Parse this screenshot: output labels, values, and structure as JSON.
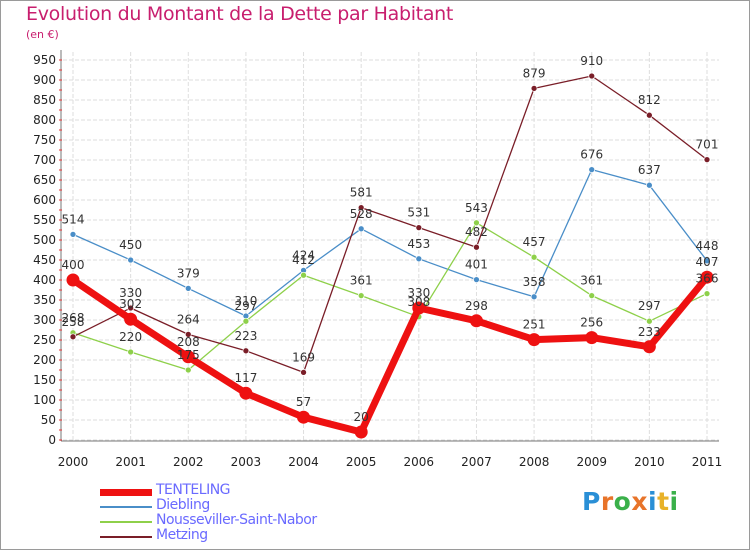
{
  "title": "Evolution du Montant de la Dette par Habitant",
  "subtitle": "(en €)",
  "logo": {
    "letters": [
      "P",
      "r",
      "o",
      "x",
      "i",
      "t",
      "i"
    ],
    "colors": [
      "#2a8fd6",
      "#e8742a",
      "#3ab04a",
      "#e8742a",
      "#2a8fd6",
      "#e8b22a",
      "#3ab04a"
    ]
  },
  "chart_data": {
    "type": "line",
    "x": [
      "2000",
      "2001",
      "2002",
      "2003",
      "2004",
      "2005",
      "2006",
      "2007",
      "2008",
      "2009",
      "2010",
      "2011"
    ],
    "ylim": [
      0,
      950
    ],
    "yticks": [
      0,
      50,
      100,
      150,
      200,
      250,
      300,
      350,
      400,
      450,
      500,
      550,
      600,
      650,
      700,
      750,
      800,
      850,
      900,
      950
    ],
    "grid": true,
    "legend_position": "bottom-left",
    "series": [
      {
        "name": "Diebling",
        "color": "#4a8ec8",
        "values": [
          514,
          450,
          379,
          310,
          424,
          528,
          453,
          401,
          358,
          676,
          637,
          448
        ]
      },
      {
        "name": "Nousseviller-Saint-Nabor",
        "color": "#8ed04a",
        "values": [
          268,
          220,
          175,
          297,
          412,
          361,
          308,
          543,
          457,
          361,
          297,
          366
        ]
      },
      {
        "name": "Metzing",
        "color": "#7a1e28",
        "values": [
          258,
          330,
          264,
          223,
          169,
          581,
          531,
          482,
          879,
          910,
          812,
          701
        ]
      },
      {
        "name": "TENTELING",
        "color": "#ee1111",
        "values": [
          400,
          302,
          208,
          117,
          57,
          20,
          330,
          298,
          251,
          256,
          233,
          407
        ]
      }
    ]
  },
  "legend": [
    {
      "label": "TENTELING",
      "color": "#ee1111",
      "thick": true
    },
    {
      "label": "Diebling",
      "color": "#4a8ec8",
      "thick": false
    },
    {
      "label": "Nousseviller-Saint-Nabor",
      "color": "#8ed04a",
      "thick": false
    },
    {
      "label": "Metzing",
      "color": "#7a1e28",
      "thick": false
    }
  ]
}
